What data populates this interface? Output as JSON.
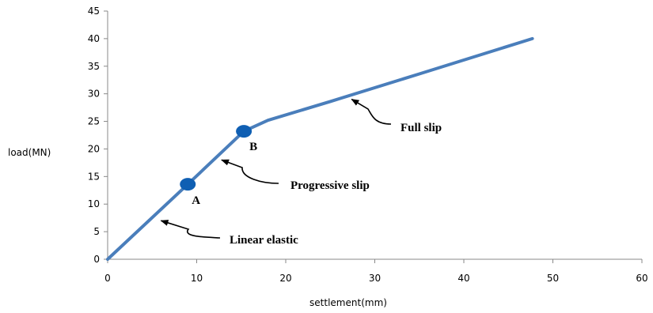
{
  "chart_data": {
    "type": "line",
    "xlabel": "settlement(mm)",
    "ylabel": "load(MN)",
    "xlim": [
      0,
      60
    ],
    "ylim": [
      0,
      45
    ],
    "xticks": [
      0,
      10,
      20,
      30,
      40,
      50,
      60
    ],
    "yticks": [
      0,
      5,
      10,
      15,
      20,
      25,
      30,
      35,
      40,
      45
    ],
    "grid": false,
    "series": [
      {
        "x": [
          0,
          9.0,
          15.3,
          18,
          25,
          35,
          47.7
        ],
        "y": [
          0,
          13.6,
          23.2,
          25.2,
          28.6,
          33.6,
          40.0
        ],
        "color": "#4a7ebb"
      }
    ],
    "points": [
      {
        "label": "A",
        "x": 9.0,
        "y": 13.6,
        "color": "#0f5fb3"
      },
      {
        "label": "B",
        "x": 15.3,
        "y": 23.2,
        "color": "#0f5fb3"
      }
    ],
    "annotations": [
      {
        "text": "Linear elastic",
        "arrow_to": [
          6,
          7
        ]
      },
      {
        "text": "Progressive slip",
        "arrow_to": [
          12.8,
          18
        ]
      },
      {
        "text": "Full slip",
        "arrow_to": [
          27.4,
          29
        ]
      }
    ]
  }
}
